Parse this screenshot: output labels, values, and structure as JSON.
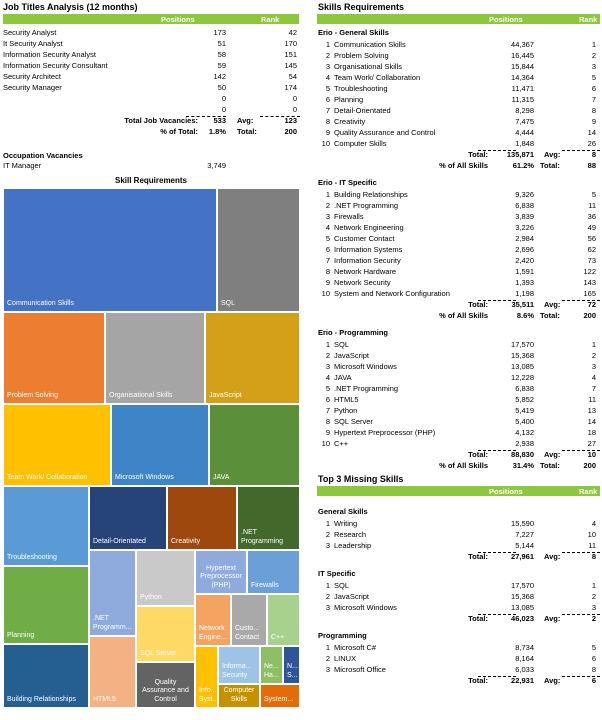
{
  "job_titles": {
    "title": "Job Titles Analysis (12 months)",
    "col_positions": "Positions",
    "col_rank": "Rank",
    "rows": [
      {
        "name": "Security Analyst",
        "positions": "173",
        "rank": "42"
      },
      {
        "name": "It Security Analyst",
        "positions": "51",
        "rank": "170"
      },
      {
        "name": "Information Security Analyst",
        "positions": "58",
        "rank": "151"
      },
      {
        "name": "Information Security Consultant",
        "positions": "59",
        "rank": "145"
      },
      {
        "name": "Security Architect",
        "positions": "142",
        "rank": "54"
      },
      {
        "name": "Security Manager",
        "positions": "50",
        "rank": "174"
      },
      {
        "name": "",
        "positions": "0",
        "rank": "0"
      },
      {
        "name": "",
        "positions": "0",
        "rank": "0"
      }
    ],
    "total_label": "Total Job Vacancies:",
    "total_value": "533",
    "avg_label": "Avg:",
    "avg_value": "123",
    "pct_label": "% of Total:",
    "pct_value": "1.8%",
    "total2_label": "Total:",
    "total2_value": "200"
  },
  "occupation": {
    "title": "Occupation Vacancies",
    "name": "IT Manager",
    "value": "3,749"
  },
  "treemap": {
    "title": "Skill Requirements",
    "tiles": [
      {
        "label": "Communication Skills",
        "color": "#4472c4"
      },
      {
        "label": "SQL",
        "color": "#7f7f7f"
      },
      {
        "label": "Problem Solving",
        "color": "#ed7d31"
      },
      {
        "label": "Organisational Skills",
        "color": "#a5a5a5"
      },
      {
        "label": "JavaScript",
        "color": "#d4a017"
      },
      {
        "label": "Team Work/ Collaboration",
        "color": "#ffc000"
      },
      {
        "label": "Microsoft Windows",
        "color": "#3d85c6"
      },
      {
        "label": "JAVA",
        "color": "#5b8f3a"
      },
      {
        "label": "Troubleshooting",
        "color": "#5b9bd5"
      },
      {
        "label": "Detail-Orientated",
        "color": "#264478"
      },
      {
        "label": "Creativity",
        "color": "#9e480e"
      },
      {
        "label": ".NET Programming",
        "color": "#43682b"
      },
      {
        "label": "Planning",
        "color": "#70ad47"
      },
      {
        "label": ".NET Programm...",
        "color": "#8faadc"
      },
      {
        "label": "Python",
        "color": "#c9c9c9"
      },
      {
        "label": "Hypertext Preprocessor (PHP)",
        "color": "#8faadc"
      },
      {
        "label": "Firewalls",
        "color": "#6a9fd8"
      },
      {
        "label": "Building Relationships",
        "color": "#255e91"
      },
      {
        "label": "HTML5",
        "color": "#f4b183"
      },
      {
        "label": "SQL Server",
        "color": "#ffd966"
      },
      {
        "label": "Network Engine...",
        "color": "#f4a460"
      },
      {
        "label": "Custo... Contact",
        "color": "#a9a9a9"
      },
      {
        "label": "C++",
        "color": "#a9d18e"
      },
      {
        "label": "Quality Assurance and Control",
        "color": "#636363"
      },
      {
        "label": "Info... Syst...",
        "color": "#ffc000"
      },
      {
        "label": "Informa... Security",
        "color": "#9dc3e6"
      },
      {
        "label": "Ne... Ha...",
        "color": "#8cc063"
      },
      {
        "label": "N... S...",
        "color": "#2e5597"
      },
      {
        "label": "Computer Skills",
        "color": "#c59100"
      },
      {
        "label": "System...",
        "color": "#e36c09"
      }
    ]
  },
  "skills_req": {
    "title": "Skills Requirements",
    "col_positions": "Positions",
    "col_rank": "Rank",
    "groups": [
      {
        "name": "Erio - General Skills",
        "rows": [
          {
            "n": "1",
            "name": "Communication Skills",
            "positions": "44,367",
            "rank": "1"
          },
          {
            "n": "2",
            "name": "Problem Solving",
            "positions": "16,445",
            "rank": "2"
          },
          {
            "n": "3",
            "name": "Organisational Skills",
            "positions": "15,844",
            "rank": "3"
          },
          {
            "n": "4",
            "name": "Team Work/ Collaboration",
            "positions": "14,364",
            "rank": "5"
          },
          {
            "n": "5",
            "name": "Troubleshooting",
            "positions": "11,471",
            "rank": "6"
          },
          {
            "n": "6",
            "name": "Planning",
            "positions": "11,315",
            "rank": "7"
          },
          {
            "n": "7",
            "name": "Detail-Orientated",
            "positions": "8,298",
            "rank": "8"
          },
          {
            "n": "8",
            "name": "Creativity",
            "positions": "7,475",
            "rank": "9"
          },
          {
            "n": "9",
            "name": "Quality Assurance and Control",
            "positions": "4,444",
            "rank": "14"
          },
          {
            "n": "10",
            "name": "Computer Skills",
            "positions": "1,848",
            "rank": "26"
          }
        ],
        "total_label": "Total:",
        "total_value": "135,871",
        "avg_label": "Avg:",
        "avg_value": "8",
        "pct_label": "% of All Skills",
        "pct_value": "61.2%",
        "total2_label": "Total:",
        "total2_value": "88"
      },
      {
        "name": "Erio - IT Specific",
        "rows": [
          {
            "n": "1",
            "name": "Building Relationships",
            "positions": "9,326",
            "rank": "5"
          },
          {
            "n": "2",
            "name": ".NET Programming",
            "positions": "6,838",
            "rank": "11"
          },
          {
            "n": "3",
            "name": "Firewalls",
            "positions": "3,839",
            "rank": "36"
          },
          {
            "n": "4",
            "name": "Network Engineering",
            "positions": "3,226",
            "rank": "49"
          },
          {
            "n": "5",
            "name": "Customer Contact",
            "positions": "2,984",
            "rank": "56"
          },
          {
            "n": "6",
            "name": "Information Systems",
            "positions": "2,696",
            "rank": "62"
          },
          {
            "n": "7",
            "name": "Information Security",
            "positions": "2,420",
            "rank": "73"
          },
          {
            "n": "8",
            "name": "Network Hardware",
            "positions": "1,591",
            "rank": "122"
          },
          {
            "n": "9",
            "name": "Network Security",
            "positions": "1,393",
            "rank": "143"
          },
          {
            "n": "10",
            "name": "System and Network Configuration",
            "positions": "1,198",
            "rank": "165"
          }
        ],
        "total_label": "Total:",
        "total_value": "35,511",
        "avg_label": "Avg:",
        "avg_value": "72",
        "pct_label": "% of All Skills",
        "pct_value": "8.6%",
        "total2_label": "Total:",
        "total2_value": "200"
      },
      {
        "name": "Erio - Programming",
        "rows": [
          {
            "n": "1",
            "name": "SQL",
            "positions": "17,570",
            "rank": "1"
          },
          {
            "n": "2",
            "name": "JavaScript",
            "positions": "15,368",
            "rank": "2"
          },
          {
            "n": "3",
            "name": "Microsoft Windows",
            "positions": "13,085",
            "rank": "3"
          },
          {
            "n": "4",
            "name": "JAVA",
            "positions": "12,228",
            "rank": "4"
          },
          {
            "n": "5",
            "name": ".NET Programming",
            "positions": "6,838",
            "rank": "7"
          },
          {
            "n": "6",
            "name": "HTML5",
            "positions": "5,852",
            "rank": "11"
          },
          {
            "n": "7",
            "name": "Python",
            "positions": "5,419",
            "rank": "13"
          },
          {
            "n": "8",
            "name": "SQL Server",
            "positions": "5,400",
            "rank": "14"
          },
          {
            "n": "9",
            "name": "Hypertext Preprocessor (PHP)",
            "positions": "4,132",
            "rank": "18"
          },
          {
            "n": "10",
            "name": "C++",
            "positions": "2,938",
            "rank": "27"
          }
        ],
        "total_label": "Total:",
        "total_value": "88,830",
        "avg_label": "Avg:",
        "avg_value": "10",
        "pct_label": "% of All Skills",
        "pct_value": "31.4%",
        "total2_label": "Total:",
        "total2_value": "200"
      }
    ]
  },
  "missing": {
    "title": "Top 3 Missing Skills",
    "col_positions": "Positions",
    "col_rank": "Rank",
    "groups": [
      {
        "name": "General Skills",
        "rows": [
          {
            "n": "1",
            "name": "Writing",
            "positions": "15,590",
            "rank": "4"
          },
          {
            "n": "2",
            "name": "Research",
            "positions": "7,227",
            "rank": "10"
          },
          {
            "n": "3",
            "name": "Leadership",
            "positions": "5,144",
            "rank": "11"
          }
        ],
        "total_label": "Total:",
        "total_value": "27,961",
        "avg_label": "Avg:",
        "avg_value": "8"
      },
      {
        "name": "IT Specific",
        "rows": [
          {
            "n": "1",
            "name": "SQL",
            "positions": "17,570",
            "rank": "1"
          },
          {
            "n": "2",
            "name": "JavaScript",
            "positions": "15,368",
            "rank": "2"
          },
          {
            "n": "3",
            "name": "Microsoft Windows",
            "positions": "13,085",
            "rank": "3"
          }
        ],
        "total_label": "Total:",
        "total_value": "46,023",
        "avg_label": "Avg:",
        "avg_value": "2"
      },
      {
        "name": "Programming",
        "rows": [
          {
            "n": "1",
            "name": "Microsoft C#",
            "positions": "8,734",
            "rank": "5"
          },
          {
            "n": "2",
            "name": "LINUX",
            "positions": "8,164",
            "rank": "6"
          },
          {
            "n": "3",
            "name": "Microsoft Office",
            "positions": "6,033",
            "rank": "8"
          }
        ],
        "total_label": "Total:",
        "total_value": "22,931",
        "avg_label": "Avg:",
        "avg_value": "6"
      }
    ]
  }
}
